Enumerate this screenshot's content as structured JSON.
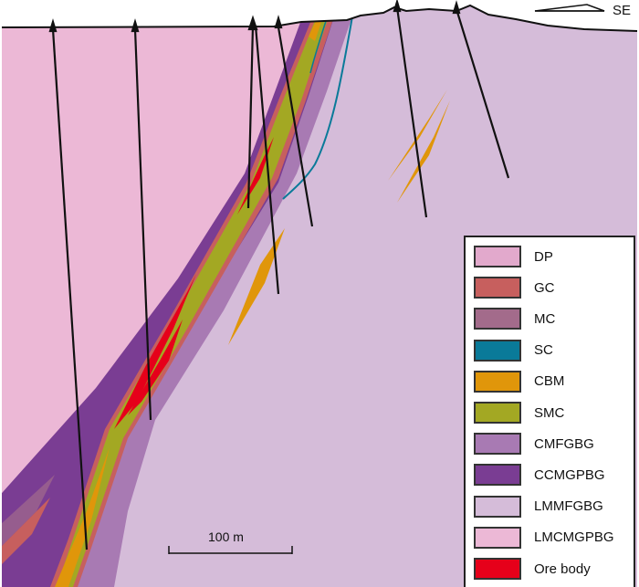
{
  "direction_label": "SE",
  "scale_bar_label": "100 m",
  "legend": [
    {
      "label": "DP",
      "color": "#e2a9cc"
    },
    {
      "label": "GC",
      "color": "#c75f5e"
    },
    {
      "label": "MC",
      "color": "#a36b8b"
    },
    {
      "label": "SC",
      "color": "#0a7a99"
    },
    {
      "label": "CBM",
      "color": "#e0960a"
    },
    {
      "label": "SMC",
      "color": "#a3a823"
    },
    {
      "label": "CMFGBG",
      "color": "#a87ab3"
    },
    {
      "label": "CCMGPBG",
      "color": "#7a3d93"
    },
    {
      "label": "LMMFGBG",
      "color": "#d5bcd9"
    },
    {
      "label": "LMCMGPBG",
      "color": "#ecb8d6"
    },
    {
      "label": "Ore body",
      "color": "#e6001a"
    }
  ]
}
